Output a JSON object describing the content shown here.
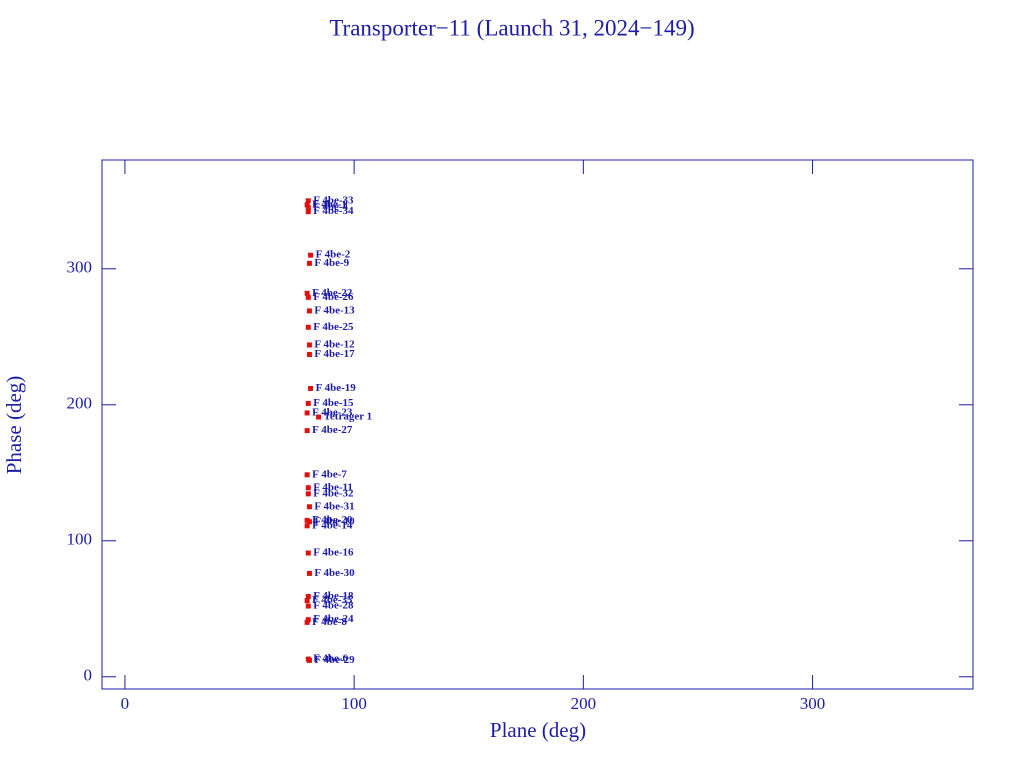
{
  "chart_data": {
    "type": "scatter",
    "title": "Transporter−11 (Launch 31, 2024−149)",
    "x_label": "Plane (deg)",
    "y_label": "Phase (deg)",
    "xlim": [
      -10,
      370
    ],
    "ylim": [
      -9,
      380
    ],
    "xticks": [
      0,
      100,
      200,
      300
    ],
    "yticks": [
      0,
      100,
      200,
      300
    ],
    "color": "#e01010",
    "label_color": "#1c1ca8",
    "x": [
      80,
      79.5,
      80,
      80,
      81,
      80.5,
      79.5,
      80,
      80.5,
      80,
      80.5,
      80.5,
      81,
      80,
      79.5,
      84.5,
      79.5,
      79.5,
      80,
      80,
      80.5,
      79.5,
      79.5,
      80,
      80.5,
      80,
      79.5,
      80,
      80,
      79.5,
      80,
      80.5,
      80.5
    ],
    "values": [
      350,
      347,
      345,
      342,
      310,
      304,
      282,
      279,
      269,
      257,
      244,
      237,
      212,
      201,
      194,
      191,
      181,
      148.5,
      139,
      134.5,
      125,
      115,
      111,
      91,
      76,
      59,
      56,
      52,
      42,
      40,
      13,
      12,
      114
    ],
    "point_labels": [
      "F 4be-33",
      "F 4be-1",
      "F 4be-4",
      "F 4be-34",
      "F 4be-2",
      "F 4be-9",
      "F 4be-22",
      "F 4be-26",
      "F 4be-13",
      "F 4be-25",
      "F 4be-12",
      "F 4be-17",
      "F 4be-19",
      "F 4be-15",
      "F 4be-23",
      "Tetrager 1",
      "F 4be-27",
      "F 4be-7",
      "F 4be-11",
      "F 4be-32",
      "F 4be-31",
      "F 4be-20",
      "F 4be-14",
      "F 4be-16",
      "F 4be-30",
      "F 4be-18",
      "F 4be-35",
      "F 4be-28",
      "F 4be-24",
      "F 4be-8",
      "F 4be-6",
      "F 4be-29",
      "F 4be-10"
    ]
  }
}
